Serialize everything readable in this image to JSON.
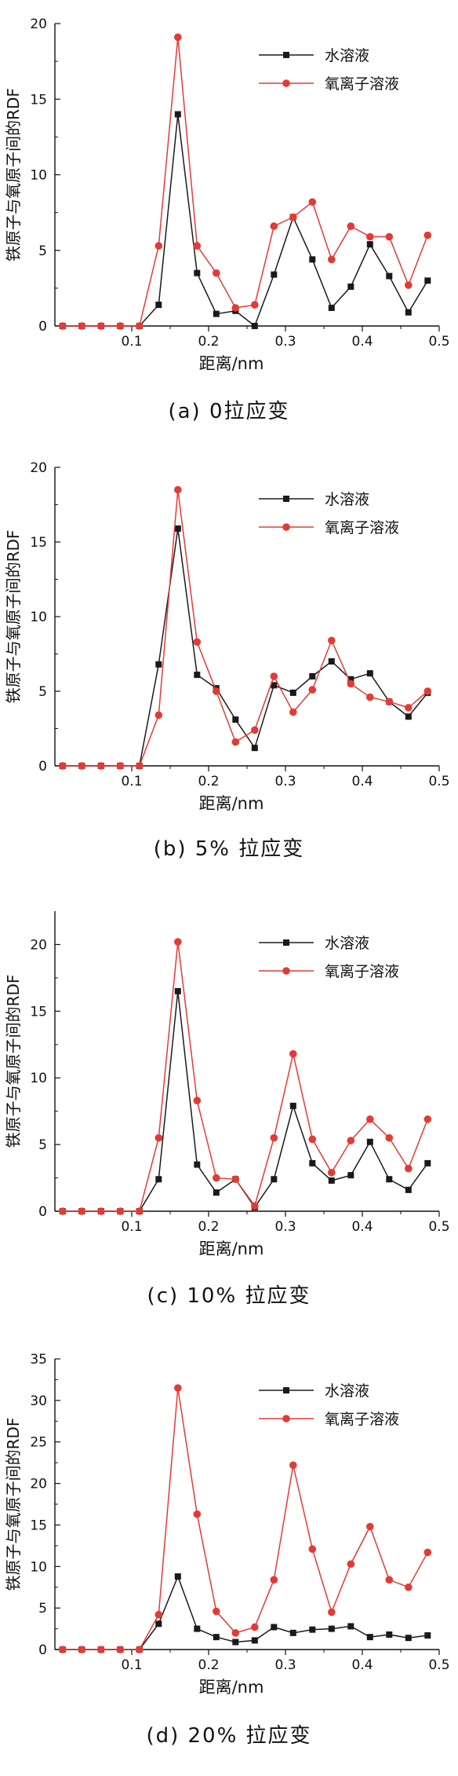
{
  "figure": {
    "y_label": "铁原子与氧原子间的RDF",
    "x_label": "距离/nm"
  },
  "series_styles": [
    {
      "color": "#1a1a1a",
      "marker": "square"
    },
    {
      "color": "#e23b36",
      "marker": "circle"
    }
  ],
  "chart_data": [
    {
      "type": "line",
      "caption": "(a) 0拉应变",
      "xlabel": "距离/nm",
      "ylabel": "铁原子与氧原子间的RDF",
      "xlim": [
        0,
        0.5
      ],
      "ylim": [
        0,
        20
      ],
      "x_ticks": [
        0.1,
        0.2,
        0.3,
        0.4,
        0.5
      ],
      "y_ticks": [
        0,
        5,
        10,
        15,
        20
      ],
      "legend_position": "top-right",
      "grid": false,
      "x": [
        0.01,
        0.035,
        0.06,
        0.085,
        0.11,
        0.135,
        0.16,
        0.185,
        0.21,
        0.235,
        0.26,
        0.285,
        0.31,
        0.335,
        0.36,
        0.385,
        0.41,
        0.435,
        0.46,
        0.485
      ],
      "series": [
        {
          "name": "水溶液",
          "values": [
            0,
            0,
            0,
            0,
            0,
            1.4,
            14.0,
            3.5,
            0.8,
            1.0,
            0.0,
            3.4,
            7.2,
            4.4,
            1.2,
            2.6,
            5.4,
            3.3,
            0.9,
            3.0
          ]
        },
        {
          "name": "氧离子溶液",
          "values": [
            0,
            0,
            0,
            0,
            0,
            5.3,
            19.1,
            5.3,
            3.5,
            1.2,
            1.4,
            6.6,
            7.2,
            8.2,
            4.4,
            6.6,
            5.9,
            5.9,
            2.7,
            6.0
          ]
        }
      ]
    },
    {
      "type": "line",
      "caption": "(b) 5% 拉应变",
      "xlabel": "距离/nm",
      "ylabel": "铁原子与氧原子间的RDF",
      "xlim": [
        0,
        0.5
      ],
      "ylim": [
        0,
        20
      ],
      "x_ticks": [
        0.1,
        0.2,
        0.3,
        0.4,
        0.5
      ],
      "y_ticks": [
        0,
        5,
        10,
        15,
        20
      ],
      "legend_position": "top-right",
      "grid": false,
      "x": [
        0.01,
        0.035,
        0.06,
        0.085,
        0.11,
        0.135,
        0.16,
        0.185,
        0.21,
        0.235,
        0.26,
        0.285,
        0.31,
        0.335,
        0.36,
        0.385,
        0.41,
        0.435,
        0.46,
        0.485
      ],
      "series": [
        {
          "name": "水溶液",
          "values": [
            0,
            0,
            0,
            0,
            0,
            6.8,
            15.9,
            6.1,
            5.2,
            3.1,
            1.2,
            5.4,
            4.9,
            6.0,
            7.0,
            5.8,
            6.2,
            4.3,
            3.3,
            4.9
          ]
        },
        {
          "name": "氧离子溶液",
          "values": [
            0,
            0,
            0,
            0,
            0,
            3.4,
            18.5,
            8.3,
            5.0,
            1.6,
            2.4,
            6.0,
            3.6,
            5.1,
            8.4,
            5.5,
            4.6,
            4.3,
            3.9,
            5.0
          ]
        }
      ]
    },
    {
      "type": "line",
      "caption": "(c) 10% 拉应变",
      "xlabel": "距离/nm",
      "ylabel": "铁原子与氧原子间的RDF",
      "xlim": [
        0,
        0.5
      ],
      "ylim": [
        0,
        22.5
      ],
      "x_ticks": [
        0.1,
        0.2,
        0.3,
        0.4,
        0.5
      ],
      "y_ticks": [
        0,
        5,
        10,
        15,
        20
      ],
      "legend_position": "top-right",
      "grid": false,
      "x": [
        0.01,
        0.035,
        0.06,
        0.085,
        0.11,
        0.135,
        0.16,
        0.185,
        0.21,
        0.235,
        0.26,
        0.285,
        0.31,
        0.335,
        0.36,
        0.385,
        0.41,
        0.435,
        0.46,
        0.485
      ],
      "series": [
        {
          "name": "水溶液",
          "values": [
            0,
            0,
            0,
            0,
            0,
            2.4,
            16.5,
            3.5,
            1.4,
            2.4,
            0.3,
            2.4,
            7.9,
            3.6,
            2.3,
            2.7,
            5.2,
            2.4,
            1.6,
            3.6
          ]
        },
        {
          "name": "氧离子溶液",
          "values": [
            0,
            0,
            0,
            0,
            0,
            5.5,
            20.2,
            8.3,
            2.5,
            2.4,
            0.4,
            5.5,
            11.8,
            5.4,
            2.9,
            5.3,
            6.9,
            5.5,
            3.2,
            6.9
          ]
        }
      ]
    },
    {
      "type": "line",
      "caption": "(d) 20% 拉应变",
      "xlabel": "距离/nm",
      "ylabel": "铁原子与氧原子间的RDF",
      "xlim": [
        0,
        0.5
      ],
      "ylim": [
        0,
        35
      ],
      "x_ticks": [
        0.1,
        0.2,
        0.3,
        0.4,
        0.5
      ],
      "y_ticks": [
        0,
        5,
        10,
        15,
        20,
        25,
        30,
        35
      ],
      "legend_position": "top-right",
      "grid": false,
      "x": [
        0.01,
        0.035,
        0.06,
        0.085,
        0.11,
        0.135,
        0.16,
        0.185,
        0.21,
        0.235,
        0.26,
        0.285,
        0.31,
        0.335,
        0.36,
        0.385,
        0.41,
        0.435,
        0.46,
        0.485
      ],
      "series": [
        {
          "name": "水溶液",
          "values": [
            0,
            0,
            0,
            0,
            0,
            3.1,
            8.8,
            2.5,
            1.5,
            0.9,
            1.1,
            2.7,
            2.0,
            2.4,
            2.5,
            2.8,
            1.5,
            1.8,
            1.4,
            1.7
          ]
        },
        {
          "name": "氧离子溶液",
          "values": [
            0,
            0,
            0,
            0,
            0,
            4.2,
            31.5,
            16.3,
            4.6,
            2.0,
            2.7,
            8.4,
            22.2,
            12.1,
            4.5,
            10.3,
            14.8,
            8.4,
            7.5,
            11.7
          ]
        }
      ]
    }
  ]
}
